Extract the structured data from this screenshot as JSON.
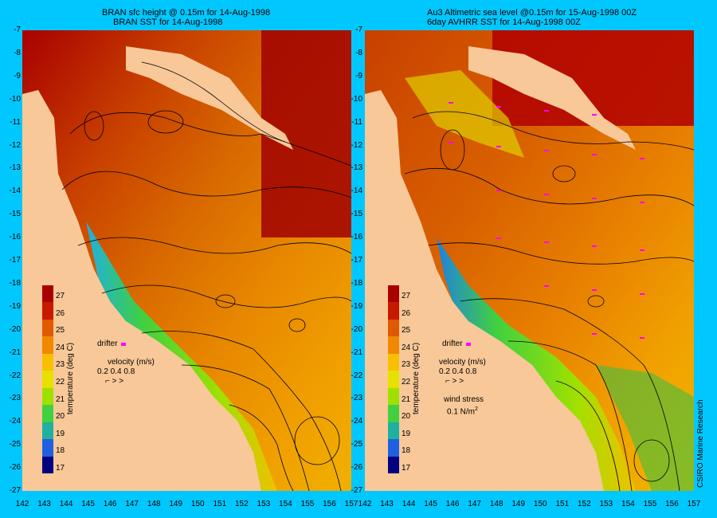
{
  "left_panel": {
    "title_line1": "BRAN sfc height @ 0.15m for 14-Aug-1998",
    "title_line2": "BRAN SST for 14-Aug-1998"
  },
  "right_panel": {
    "title_line1": "Au3 Altimetric sea level  @0.15m  for 15-Aug-1998 00Z",
    "title_line2": "6day AVHRR SST for 14-Aug-1998 00Z"
  },
  "colorbar": {
    "title": "temperature (deg C)",
    "ticks": [
      "27",
      "26",
      "25",
      "24",
      "23",
      "22",
      "21",
      "20",
      "19",
      "18",
      "17"
    ],
    "colors": [
      "#a80000",
      "#c81800",
      "#e05800",
      "#f08800",
      "#f8c000",
      "#e8e000",
      "#a0e000",
      "#40d040",
      "#20b0a0",
      "#2060e0",
      "#000080"
    ]
  },
  "legend": {
    "drifter_label": "drifter",
    "velocity_label": "velocity (m/s)",
    "velocity_values": "0.2 0.4 0.8",
    "wind_label": "wind stress",
    "wind_value": "0.1 N/m",
    "wind_exp": "2"
  },
  "axes": {
    "latitudes": [
      "-7",
      "-8",
      "-9",
      "-10",
      "-11",
      "-12",
      "-13",
      "-14",
      "-15",
      "-16",
      "-17",
      "-18",
      "-19",
      "-20",
      "-21",
      "-22",
      "-23",
      "-24",
      "-25",
      "-26",
      "-27"
    ],
    "longitudes": [
      "142",
      "143",
      "144",
      "145",
      "146",
      "147",
      "148",
      "149",
      "150",
      "151",
      "152",
      "153",
      "154",
      "155",
      "156",
      "157"
    ]
  },
  "credit": "CSIRO Marine Research",
  "colors": {
    "background": "#00c8ff",
    "land": "#f8c898",
    "drifter": "#ff00ff"
  }
}
